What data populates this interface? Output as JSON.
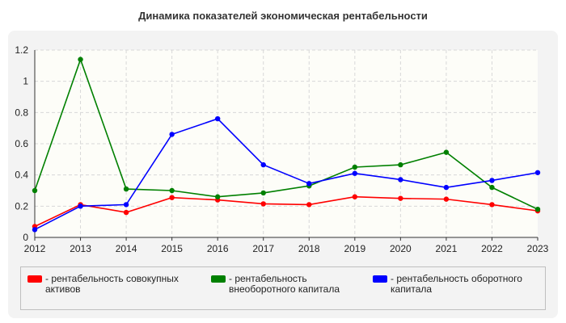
{
  "title": "Динамика показателей экономическая рентабельности",
  "chart_data": {
    "type": "line",
    "title": "Динамика показателей экономическая рентабельности",
    "xlabel": "",
    "ylabel": "",
    "x": [
      "2012",
      "2013",
      "2014",
      "2015",
      "2016",
      "2017",
      "2018",
      "2019",
      "2020",
      "2021",
      "2022",
      "2023"
    ],
    "ylim": [
      0,
      1.2
    ],
    "yticks": [
      "0",
      "0.2",
      "0.4",
      "0.6",
      "0.8",
      "1",
      "1.2"
    ],
    "grid": true,
    "legend_position": "bottom",
    "series": [
      {
        "name": "- рентабельность совокупных активов",
        "color": "#ff0000",
        "values": [
          0.07,
          0.21,
          0.16,
          0.255,
          0.24,
          0.215,
          0.21,
          0.26,
          0.25,
          0.245,
          0.21,
          0.17
        ]
      },
      {
        "name": "- рентабельность внеоборотного капитала",
        "color": "#008000",
        "values": [
          0.3,
          1.14,
          0.31,
          0.3,
          0.26,
          0.285,
          0.33,
          0.45,
          0.465,
          0.545,
          0.32,
          0.18
        ]
      },
      {
        "name": "- рентабельность оборотного капитала",
        "color": "#0000ff",
        "values": [
          0.05,
          0.2,
          0.21,
          0.66,
          0.76,
          0.465,
          0.345,
          0.41,
          0.37,
          0.32,
          0.365,
          0.415
        ]
      }
    ]
  }
}
